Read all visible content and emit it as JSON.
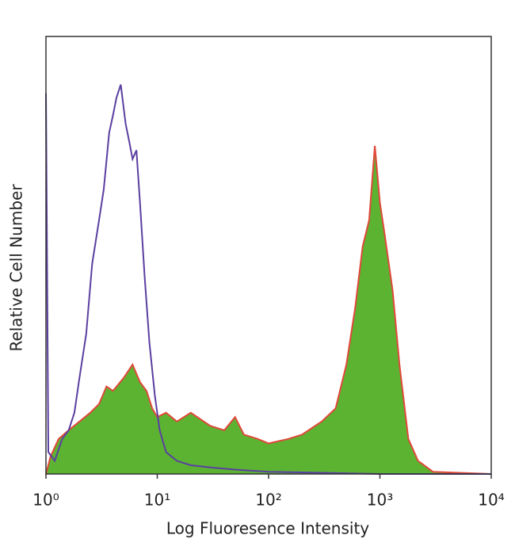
{
  "chart_data": {
    "type": "line",
    "xlabel": "Log Fluoresence Intensity",
    "ylabel": "Relative Cell Number",
    "xscale": "log",
    "xlim": [
      1,
      10000
    ],
    "ylim": [
      0,
      100
    ],
    "xticks": [
      {
        "value": 1,
        "label": "10⁰"
      },
      {
        "value": 10,
        "label": "10¹"
      },
      {
        "value": 100,
        "label": "10²"
      },
      {
        "value": 1000,
        "label": "10³"
      },
      {
        "value": 10000,
        "label": "10⁴"
      }
    ],
    "series": [
      {
        "color": "#e0483a",
        "fill": "#5cb332",
        "x": [
          1,
          1.1,
          1.3,
          1.6,
          2,
          2.5,
          3,
          3.5,
          4,
          5,
          6,
          7,
          8,
          9,
          10,
          12,
          15,
          20,
          30,
          40,
          50,
          60,
          80,
          100,
          150,
          200,
          300,
          400,
          500,
          600,
          700,
          800,
          900,
          1000,
          1100,
          1300,
          1500,
          1800,
          2200,
          3000,
          10000
        ],
        "values": [
          0,
          4,
          8,
          10,
          12,
          14,
          16,
          20,
          19,
          22,
          25,
          21,
          19,
          15,
          13,
          14,
          12,
          14,
          11,
          10,
          13,
          9,
          8,
          7,
          8,
          9,
          12,
          15,
          25,
          38,
          52,
          58,
          75,
          62,
          55,
          42,
          25,
          8,
          3,
          0.5,
          0
        ]
      },
      {
        "color": "#5b3fa0",
        "fill": null,
        "x": [
          1,
          1.05,
          1.2,
          1.4,
          1.6,
          1.8,
          2,
          2.3,
          2.6,
          3,
          3.3,
          3.7,
          4,
          4.3,
          4.7,
          5.2,
          5.6,
          6,
          6.5,
          7,
          7.7,
          8.5,
          9.5,
          10.5,
          12,
          15,
          20,
          30,
          50,
          100,
          1000,
          10000
        ],
        "values": [
          87,
          5,
          3,
          8,
          10,
          14,
          22,
          32,
          48,
          58,
          65,
          78,
          82,
          86,
          89,
          80,
          76,
          72,
          74,
          62,
          45,
          30,
          18,
          10,
          5,
          3,
          2,
          1.5,
          1,
          0.5,
          0,
          0
        ]
      }
    ]
  }
}
